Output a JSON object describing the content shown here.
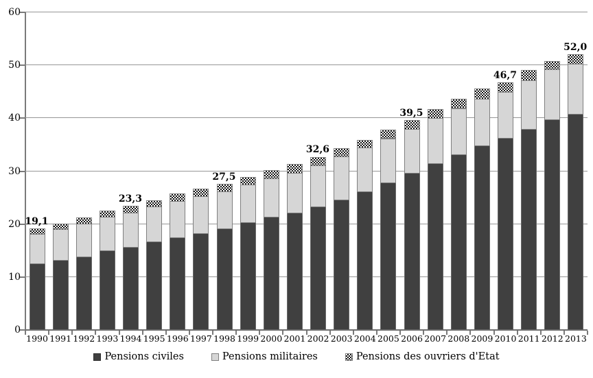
{
  "chart_data": {
    "type": "bar",
    "stacked": true,
    "title": "",
    "xlabel": "",
    "ylabel": "",
    "ylim": [
      0,
      60
    ],
    "yticks": [
      0,
      10,
      20,
      30,
      40,
      50,
      60
    ],
    "grid": true,
    "legend_position": "bottom",
    "categories": [
      "1990",
      "1991",
      "1992",
      "1993",
      "1994",
      "1995",
      "1996",
      "1997",
      "1998",
      "1999",
      "2000",
      "2001",
      "2002",
      "2003",
      "2004",
      "2005",
      "2006",
      "2007",
      "2008",
      "2009",
      "2010",
      "2011",
      "2012",
      "2013"
    ],
    "series": [
      {
        "name": "Pensions civiles",
        "color": "#404040",
        "fill": "solid-dark",
        "values": [
          12.4,
          13.1,
          13.8,
          14.9,
          15.6,
          16.6,
          17.4,
          18.2,
          19.0,
          20.2,
          21.2,
          22.1,
          23.2,
          24.5,
          26.0,
          27.8,
          29.5,
          31.4,
          33.1,
          34.7,
          36.1,
          37.9,
          39.6,
          40.7
        ]
      },
      {
        "name": "Pensions militaires",
        "color": "#d6d6d6",
        "fill": "solid-light",
        "values": [
          5.6,
          5.8,
          6.2,
          6.4,
          6.5,
          6.6,
          6.9,
          7.0,
          7.0,
          7.1,
          7.3,
          7.5,
          7.8,
          8.2,
          8.3,
          8.3,
          8.4,
          8.5,
          8.7,
          8.8,
          8.8,
          9.1,
          9.5,
          9.5
        ]
      },
      {
        "name": "Pensions des ouvriers d'Etat",
        "color": "#141414",
        "fill": "checkerboard-pattern",
        "values": [
          1.1,
          1.1,
          1.1,
          1.1,
          1.2,
          1.2,
          1.4,
          1.4,
          1.5,
          1.5,
          1.6,
          1.6,
          1.6,
          1.5,
          1.5,
          1.6,
          1.6,
          1.7,
          1.8,
          2.0,
          1.8,
          2.0,
          1.6,
          1.8
        ]
      }
    ],
    "totals": [
      19.1,
      20.0,
      21.1,
      22.4,
      23.3,
      24.4,
      25.7,
      26.6,
      27.5,
      28.8,
      30.1,
      31.2,
      32.6,
      34.2,
      35.8,
      37.7,
      39.5,
      41.6,
      43.6,
      45.5,
      46.7,
      49.0,
      50.7,
      52.0
    ],
    "total_labels": [
      {
        "category": "1990",
        "text": "19,1"
      },
      {
        "category": "1994",
        "text": "23,3"
      },
      {
        "category": "1998",
        "text": "27,5"
      },
      {
        "category": "2002",
        "text": "32,6"
      },
      {
        "category": "2006",
        "text": "39,5"
      },
      {
        "category": "2010",
        "text": "46,7"
      },
      {
        "category": "2013",
        "text": "52,0"
      }
    ]
  },
  "colors": {
    "background": "#ffffff",
    "gridline": "#969696",
    "axis": "#6e6e6e",
    "bar_border": "#7f7f7f",
    "text": "#000000"
  }
}
